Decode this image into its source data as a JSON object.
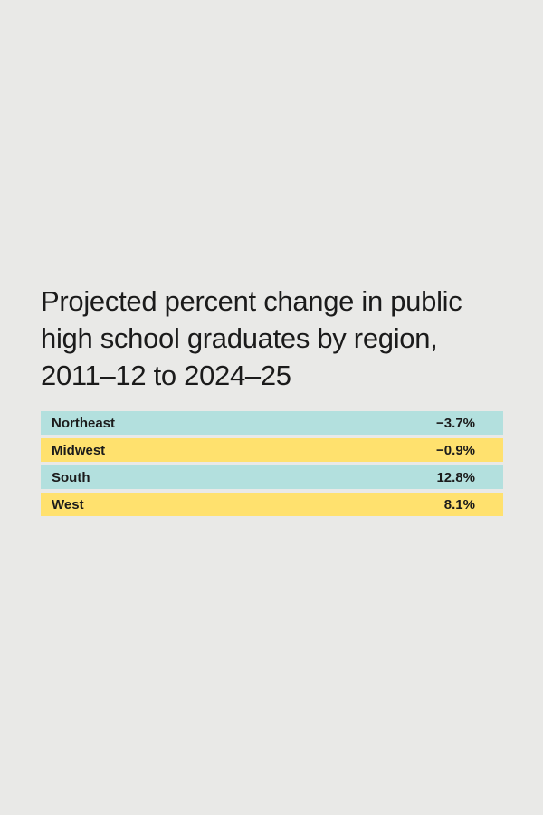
{
  "title_lines": [
    "Projected percent change in public",
    "high school graduates by region,",
    "2011–12 to 2024–25"
  ],
  "colors": {
    "background": "#e9e9e7",
    "teal_row": "#b3e0de",
    "yellow_row": "#ffe16e"
  },
  "chart_data": {
    "type": "table",
    "title": "Projected percent change in public high school graduates by region, 2011–12 to 2024–25",
    "rows": [
      {
        "region": "Northeast",
        "value": -3.7,
        "label": "−3.7%",
        "color": "#b3e0de"
      },
      {
        "region": "Midwest",
        "value": -0.9,
        "label": "−0.9%",
        "color": "#ffe16e"
      },
      {
        "region": "South",
        "value": 12.8,
        "label": "12.8%",
        "color": "#b3e0de"
      },
      {
        "region": "West",
        "value": 8.1,
        "label": "8.1%",
        "color": "#ffe16e"
      }
    ]
  }
}
